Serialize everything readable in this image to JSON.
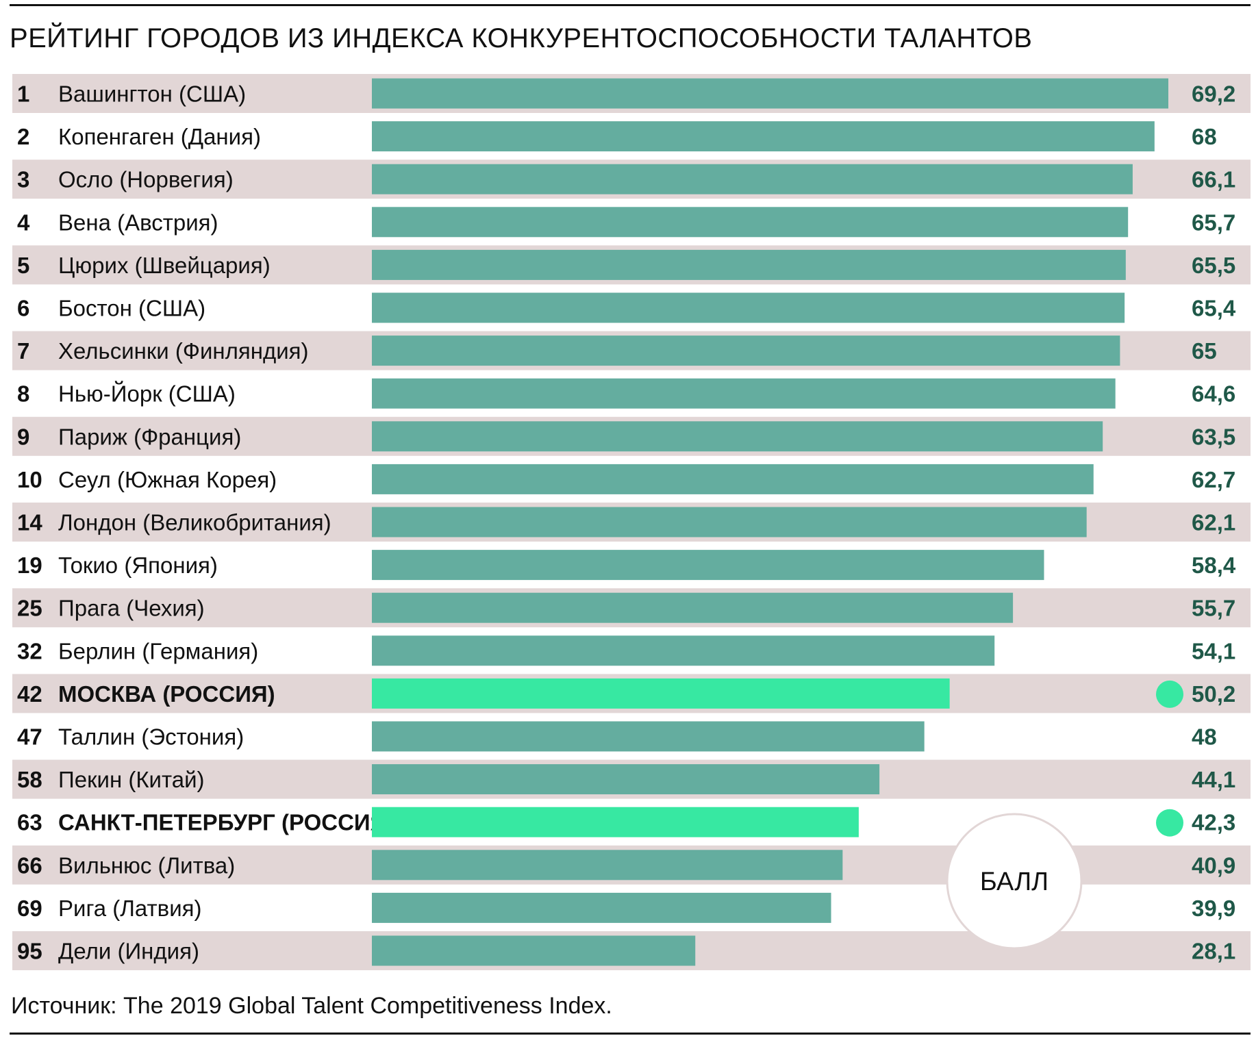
{
  "title": "РЕЙТИНГ ГОРОДОВ ИЗ ИНДЕКСА КОНКУРЕНТОСПОСОБНОСТИ ТАЛАНТОВ",
  "source": "Источник: The 2019 Global Talent Competitiveness Index.",
  "colors": {
    "band": "#e2d6d6",
    "bar": "#64ad9f",
    "highlight": "#37e8a2",
    "value_text": "#1f5848"
  },
  "chart_data": {
    "type": "bar",
    "orientation": "horizontal",
    "title": "РЕЙТИНГ ГОРОДОВ ИЗ ИНДЕКСА КОНКУРЕНТОСПОСОБНОСТИ ТАЛАНТОВ",
    "unit_label": "БАЛЛ",
    "xlim": [
      0,
      69.2
    ],
    "grid": false,
    "rows": [
      {
        "rank": "1",
        "city": "Вашингтон (США)",
        "value": 69.2,
        "label": "69,2",
        "highlight": false
      },
      {
        "rank": "2",
        "city": "Копенгаген (Дания)",
        "value": 68.0,
        "label": "68",
        "highlight": false
      },
      {
        "rank": "3",
        "city": "Осло (Норвегия)",
        "value": 66.1,
        "label": "66,1",
        "highlight": false
      },
      {
        "rank": "4",
        "city": "Вена (Австрия)",
        "value": 65.7,
        "label": "65,7",
        "highlight": false
      },
      {
        "rank": "5",
        "city": "Цюрих (Швейцария)",
        "value": 65.5,
        "label": "65,5",
        "highlight": false
      },
      {
        "rank": "6",
        "city": "Бостон (США)",
        "value": 65.4,
        "label": "65,4",
        "highlight": false
      },
      {
        "rank": "7",
        "city": "Хельсинки (Финляндия)",
        "value": 65.0,
        "label": "65",
        "highlight": false
      },
      {
        "rank": "8",
        "city": "Нью-Йорк (США)",
        "value": 64.6,
        "label": "64,6",
        "highlight": false
      },
      {
        "rank": "9",
        "city": "Париж (Франция)",
        "value": 63.5,
        "label": "63,5",
        "highlight": false
      },
      {
        "rank": "10",
        "city": "Сеул (Южная Корея)",
        "value": 62.7,
        "label": "62,7",
        "highlight": false
      },
      {
        "rank": "14",
        "city": "Лондон (Великобритания)",
        "value": 62.1,
        "label": "62,1",
        "highlight": false
      },
      {
        "rank": "19",
        "city": "Токио (Япония)",
        "value": 58.4,
        "label": "58,4",
        "highlight": false
      },
      {
        "rank": "25",
        "city": "Прага (Чехия)",
        "value": 55.7,
        "label": "55,7",
        "highlight": false
      },
      {
        "rank": "32",
        "city": "Берлин (Германия)",
        "value": 54.1,
        "label": "54,1",
        "highlight": false
      },
      {
        "rank": "42",
        "city": "МОСКВА (РОССИЯ)",
        "value": 50.2,
        "label": "50,2",
        "highlight": true
      },
      {
        "rank": "47",
        "city": "Таллин (Эстония)",
        "value": 48.0,
        "label": "48",
        "highlight": false
      },
      {
        "rank": "58",
        "city": "Пекин (Китай)",
        "value": 44.1,
        "label": "44,1",
        "highlight": false
      },
      {
        "rank": "63",
        "city": "САНКТ-ПЕТЕРБУРГ (РОССИЯ)",
        "value": 42.3,
        "label": "42,3",
        "highlight": true
      },
      {
        "rank": "66",
        "city": "Вильнюс (Литва)",
        "value": 40.9,
        "label": "40,9",
        "highlight": false
      },
      {
        "rank": "69",
        "city": "Рига (Латвия)",
        "value": 39.9,
        "label": "39,9",
        "highlight": false
      },
      {
        "rank": "95",
        "city": "Дели (Индия)",
        "value": 28.1,
        "label": "28,1",
        "highlight": false
      }
    ]
  }
}
